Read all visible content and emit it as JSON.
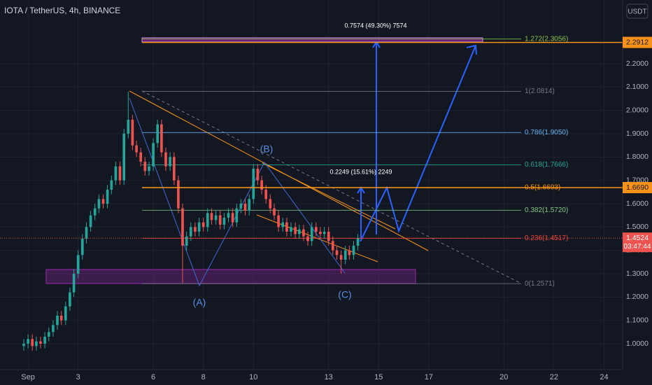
{
  "chart_data": {
    "type": "candlestick",
    "title": "IOTA / TetherUS, 4h, BINANCE",
    "currency": "USDT",
    "x": [
      0.83,
      1,
      1.17,
      1.33,
      1.5,
      1.67,
      1.83,
      2,
      2.17,
      2.33,
      2.5,
      2.67,
      2.83,
      3,
      3.17,
      3.33,
      3.5,
      3.67,
      3.83,
      4,
      4.17,
      4.33,
      4.5,
      4.67,
      4.83,
      5,
      5.17,
      5.33,
      5.5,
      5.67,
      5.83,
      6,
      6.17,
      6.33,
      6.5,
      6.67,
      6.83,
      7,
      7.17,
      7.33,
      7.5,
      7.67,
      7.83,
      8,
      8.17,
      8.33,
      8.5,
      8.67,
      8.83,
      9,
      9.17,
      9.33,
      9.5,
      9.67,
      9.83,
      10,
      10.17,
      10.33,
      10.5,
      10.67,
      10.83,
      11,
      11.17,
      11.33,
      11.5,
      11.67,
      11.83,
      12,
      12.17,
      12.33,
      12.5,
      12.67,
      12.83,
      13,
      13.17,
      13.33,
      13.5,
      13.67,
      13.83,
      14,
      14.17
    ],
    "open": [
      0.99,
      1.0,
      1.02,
      0.99,
      1.01,
      1.0,
      1.03,
      1.05,
      1.08,
      1.12,
      1.1,
      1.16,
      1.22,
      1.3,
      1.38,
      1.45,
      1.5,
      1.55,
      1.58,
      1.62,
      1.6,
      1.66,
      1.7,
      1.76,
      1.7,
      1.9,
      1.96,
      1.85,
      1.82,
      1.78,
      1.74,
      1.76,
      1.86,
      1.94,
      1.82,
      1.76,
      1.8,
      1.7,
      1.58,
      1.42,
      1.46,
      1.5,
      1.48,
      1.52,
      1.5,
      1.56,
      1.53,
      1.55,
      1.51,
      1.54,
      1.56,
      1.52,
      1.58,
      1.6,
      1.57,
      1.62,
      1.75,
      1.7,
      1.66,
      1.62,
      1.58,
      1.55,
      1.5,
      1.52,
      1.48,
      1.5,
      1.47,
      1.49,
      1.46,
      1.44,
      1.5,
      1.48,
      1.47,
      1.48,
      1.44,
      1.4,
      1.38,
      1.36,
      1.4,
      1.38,
      1.42
    ],
    "high": [
      1.02,
      1.04,
      1.04,
      1.03,
      1.03,
      1.05,
      1.07,
      1.1,
      1.14,
      1.14,
      1.18,
      1.24,
      1.32,
      1.4,
      1.47,
      1.52,
      1.57,
      1.6,
      1.64,
      1.64,
      1.68,
      1.72,
      1.78,
      1.78,
      1.92,
      2.08,
      1.98,
      1.87,
      1.84,
      1.8,
      1.78,
      1.88,
      1.96,
      1.96,
      1.84,
      1.82,
      1.82,
      1.72,
      1.6,
      1.48,
      1.52,
      1.52,
      1.54,
      1.54,
      1.58,
      1.58,
      1.57,
      1.57,
      1.56,
      1.58,
      1.58,
      1.6,
      1.62,
      1.62,
      1.64,
      1.77,
      1.77,
      1.72,
      1.68,
      1.64,
      1.6,
      1.57,
      1.54,
      1.54,
      1.52,
      1.52,
      1.51,
      1.51,
      1.48,
      1.52,
      1.52,
      1.5,
      1.5,
      1.5,
      1.46,
      1.42,
      1.4,
      1.42,
      1.42,
      1.44,
      1.47
    ],
    "low": [
      0.97,
      0.98,
      0.97,
      0.97,
      0.98,
      0.98,
      1.01,
      1.03,
      1.06,
      1.08,
      1.08,
      1.14,
      1.2,
      1.28,
      1.36,
      1.43,
      1.48,
      1.53,
      1.56,
      1.58,
      1.58,
      1.64,
      1.68,
      1.68,
      1.68,
      1.88,
      1.83,
      1.8,
      1.76,
      1.72,
      1.72,
      1.74,
      1.84,
      1.8,
      1.74,
      1.74,
      1.68,
      1.56,
      1.26,
      1.4,
      1.44,
      1.46,
      1.46,
      1.48,
      1.48,
      1.51,
      1.51,
      1.49,
      1.49,
      1.52,
      1.5,
      1.5,
      1.56,
      1.55,
      1.55,
      1.6,
      1.68,
      1.64,
      1.6,
      1.56,
      1.53,
      1.48,
      1.48,
      1.46,
      1.46,
      1.45,
      1.45,
      1.44,
      1.42,
      1.42,
      1.46,
      1.45,
      1.45,
      1.42,
      1.38,
      1.36,
      1.3,
      1.34,
      1.36,
      1.36,
      1.4
    ],
    "close": [
      1.0,
      1.02,
      0.99,
      1.01,
      1.0,
      1.03,
      1.05,
      1.08,
      1.12,
      1.1,
      1.16,
      1.22,
      1.3,
      1.38,
      1.45,
      1.5,
      1.55,
      1.58,
      1.62,
      1.6,
      1.66,
      1.7,
      1.76,
      1.7,
      1.9,
      1.96,
      1.85,
      1.82,
      1.78,
      1.74,
      1.76,
      1.86,
      1.94,
      1.82,
      1.76,
      1.8,
      1.7,
      1.58,
      1.42,
      1.46,
      1.5,
      1.48,
      1.52,
      1.5,
      1.56,
      1.53,
      1.55,
      1.51,
      1.54,
      1.56,
      1.52,
      1.58,
      1.6,
      1.57,
      1.62,
      1.75,
      1.7,
      1.66,
      1.62,
      1.58,
      1.55,
      1.5,
      1.52,
      1.48,
      1.5,
      1.47,
      1.49,
      1.46,
      1.44,
      1.5,
      1.48,
      1.47,
      1.48,
      1.44,
      1.4,
      1.38,
      1.36,
      1.4,
      1.38,
      1.42,
      1.4524
    ],
    "up_color": "#26a69a",
    "down_color": "#ef5350",
    "xlim": [
      -0.12,
      24.74
    ],
    "ylim": [
      0.889,
      2.473
    ],
    "xticks": [
      {
        "value": 1,
        "label": "Sep"
      },
      3,
      6,
      8,
      10,
      13,
      15,
      17,
      20,
      22,
      24
    ],
    "yticks": [
      {
        "value": 1,
        "label": "1.0000"
      },
      {
        "value": 1.1,
        "label": "1.1000"
      },
      {
        "value": 1.2,
        "label": "1.2000"
      },
      {
        "value": 1.3,
        "label": "1.3000"
      },
      {
        "value": 1.4,
        "label": "1.4000"
      },
      {
        "value": 1.5,
        "label": "1.5000"
      },
      {
        "value": 1.6,
        "label": "1.6000"
      },
      {
        "value": 1.7,
        "label": "1.7000"
      },
      {
        "value": 1.8,
        "label": "1.8000"
      },
      {
        "value": 1.9,
        "label": "1.9000"
      },
      {
        "value": 2,
        "label": "2.0000"
      },
      {
        "value": 2.1,
        "label": "2.1000"
      },
      {
        "value": 2.2,
        "label": "2.2000"
      }
    ],
    "grid": true,
    "fib_levels": [
      {
        "label": "1.272(2.3056)",
        "value": 2.3056,
        "color": "#8bc34a"
      },
      {
        "label": "1(2.0814)",
        "value": 2.0814,
        "color": "#787b86"
      },
      {
        "label": "0.786(1.9050)",
        "value": 1.905,
        "color": "#64b5f6"
      },
      {
        "label": "0.618(1.7666)",
        "value": 1.7666,
        "color": "#26a69a"
      },
      {
        "label": "0.5(1.6693)",
        "value": 1.6693,
        "color": "#ff9800"
      },
      {
        "label": "0.382(1.5720)",
        "value": 1.572,
        "color": "#81c784"
      },
      {
        "label": "0.236(1.4517)",
        "value": 1.4517,
        "color": "#f44336"
      },
      {
        "label": "0(1.2571)",
        "value": 1.2571,
        "color": "#787b86"
      }
    ],
    "price_lines": [
      {
        "value": 2.2912,
        "label": "2.2912",
        "color": "#f7931a"
      },
      {
        "value": 1.669,
        "label": "1.6690",
        "color": "#f7931a"
      }
    ],
    "current_price": {
      "value": 1.4524,
      "label": "1.4524",
      "countdown": "03:47:44",
      "color": "#ef5350"
    },
    "annotations": [
      "0.7574 (49.30%) 7574",
      "0.2249 (15.61%) 2249",
      "(A)",
      "(B)",
      "(C)"
    ]
  }
}
